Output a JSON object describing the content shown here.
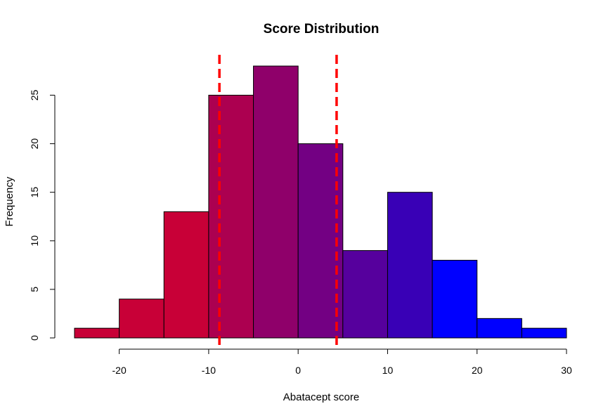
{
  "chart_data": {
    "type": "bar",
    "title": "Score Distribution",
    "xlabel": "Abatacept score",
    "ylabel": "Frequency",
    "bins": [
      {
        "start": -25,
        "end": -20,
        "count": 1
      },
      {
        "start": -20,
        "end": -15,
        "count": 4
      },
      {
        "start": -15,
        "end": -10,
        "count": 13
      },
      {
        "start": -10,
        "end": -5,
        "count": 25
      },
      {
        "start": -5,
        "end": 0,
        "count": 28
      },
      {
        "start": 0,
        "end": 5,
        "count": 20
      },
      {
        "start": 5,
        "end": 10,
        "count": 9
      },
      {
        "start": 10,
        "end": 15,
        "count": 15
      },
      {
        "start": 15,
        "end": 20,
        "count": 8
      },
      {
        "start": 20,
        "end": 25,
        "count": 2
      },
      {
        "start": 25,
        "end": 30,
        "count": 1
      }
    ],
    "bar_colors": [
      "#c80037",
      "#c80037",
      "#c80037",
      "#ac0050",
      "#8f006a",
      "#730083",
      "#56009d",
      "#3900b6",
      "#0000ff",
      "#0000ff",
      "#0000ff"
    ],
    "xlim": [
      -25,
      30
    ],
    "ylim": [
      0,
      28
    ],
    "x_ticks": [
      -20,
      -10,
      0,
      10,
      20,
      30
    ],
    "y_ticks": [
      0,
      5,
      10,
      15,
      20,
      25
    ],
    "reference_lines": [
      {
        "x": -8.8,
        "color": "#ff0000",
        "style": "dashed"
      },
      {
        "x": 4.3,
        "color": "#ff0000",
        "style": "dashed"
      }
    ]
  }
}
